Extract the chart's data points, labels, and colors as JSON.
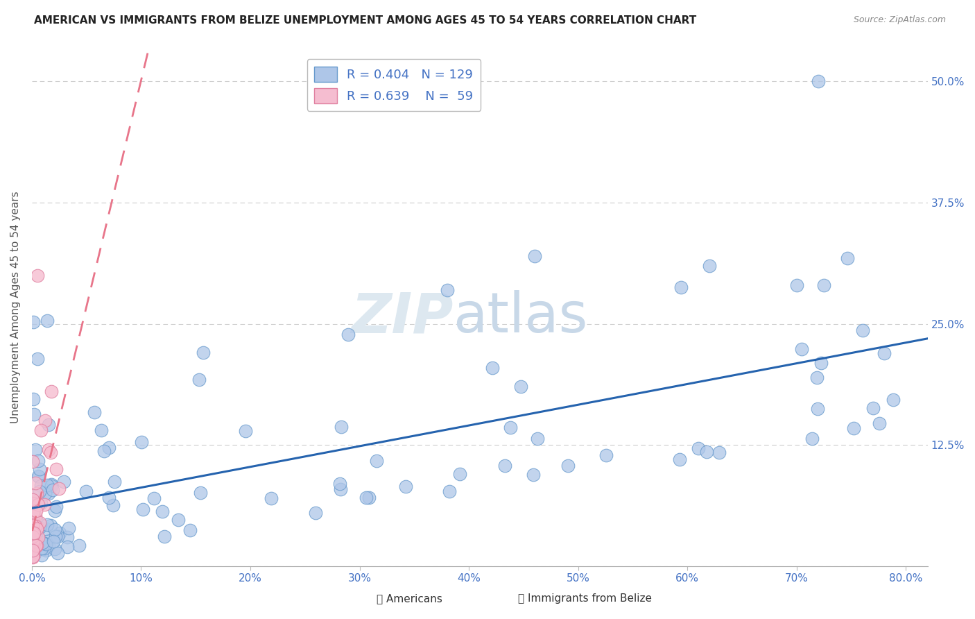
{
  "title": "AMERICAN VS IMMIGRANTS FROM BELIZE UNEMPLOYMENT AMONG AGES 45 TO 54 YEARS CORRELATION CHART",
  "source": "Source: ZipAtlas.com",
  "ylabel": "Unemployment Among Ages 45 to 54 years",
  "legend_label1": "Americans",
  "legend_label2": "Immigrants from Belize",
  "r1": 0.404,
  "n1": 129,
  "r2": 0.639,
  "n2": 59,
  "blue_color": "#aec6e8",
  "blue_edge_color": "#6699cc",
  "pink_color": "#f5bdd0",
  "pink_edge_color": "#e080a0",
  "blue_line_color": "#2563ae",
  "pink_line_color": "#e8758a",
  "background_color": "#ffffff",
  "watermark_color": "#dde8f0",
  "xlim": [
    0.0,
    0.82
  ],
  "ylim": [
    0.0,
    0.535
  ],
  "xticks": [
    0.0,
    0.1,
    0.2,
    0.3,
    0.4,
    0.5,
    0.6,
    0.7,
    0.8
  ],
  "xtick_labels": [
    "0.0%",
    "10%",
    "20%",
    "30%",
    "40%",
    "50%",
    "60%",
    "70%",
    "80.0%"
  ],
  "yticks": [
    0.0,
    0.125,
    0.25,
    0.375,
    0.5
  ],
  "ytick_labels": [
    "",
    "12.5%",
    "25.0%",
    "37.5%",
    "50.0%"
  ],
  "title_fontsize": 11,
  "tick_fontsize": 11,
  "axis_label_fontsize": 11
}
